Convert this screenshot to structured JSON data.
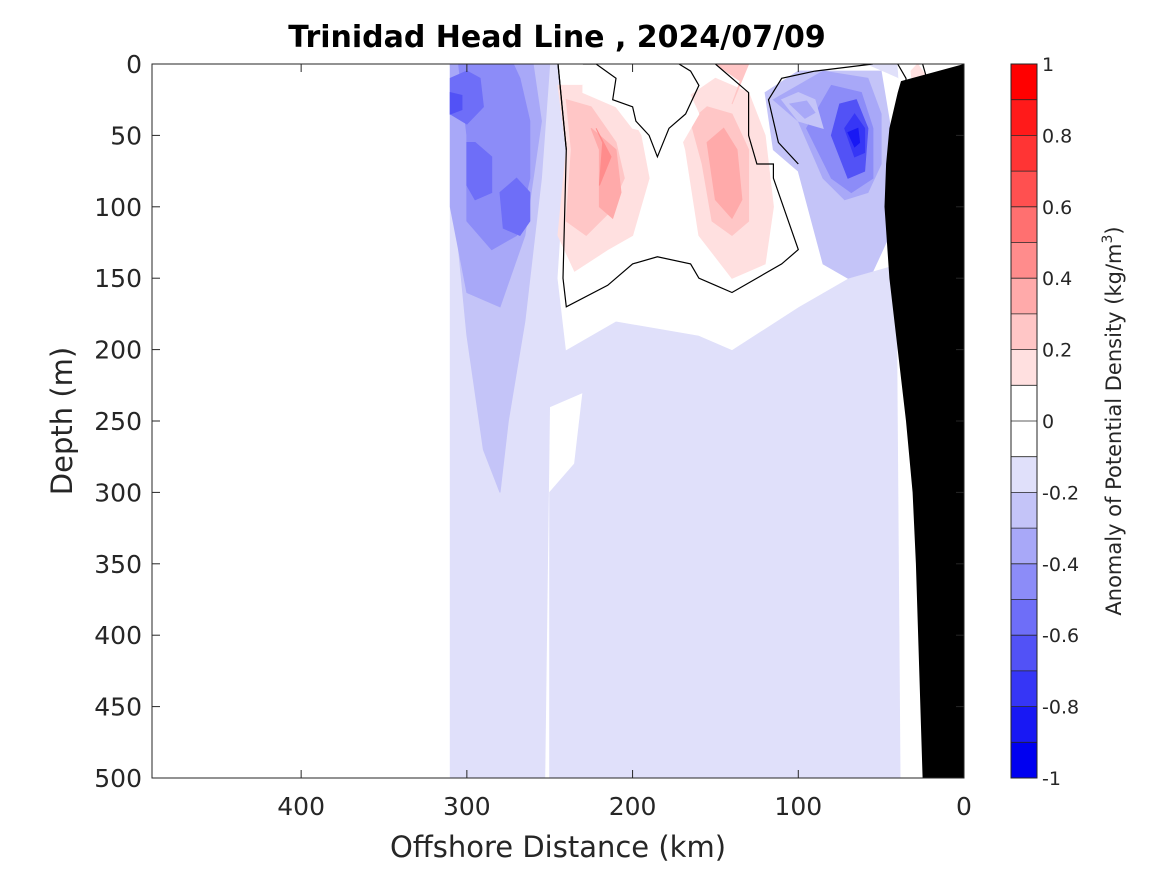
{
  "chart_data": {
    "type": "heatmap",
    "title": "Trinidad Head Line , 2024/07/09",
    "xlabel": "Offshore Distance (km)",
    "ylabel": "Depth (m)",
    "xlim": [
      490,
      0
    ],
    "ylim": [
      500,
      0
    ],
    "x_ticks": [
      400,
      300,
      200,
      100,
      0
    ],
    "y_ticks": [
      0,
      50,
      100,
      150,
      200,
      250,
      300,
      350,
      400,
      450,
      500
    ],
    "colorbar": {
      "label_main": "Anomaly of Potential Density (kg/m",
      "label_sup": "3",
      "label_end": ")",
      "lim": [
        -1,
        1
      ],
      "ticks": [
        1,
        0.8,
        0.6,
        0.4,
        0.2,
        0,
        -0.2,
        -0.4,
        -0.6,
        -0.8,
        -1
      ],
      "levels": 20
    },
    "colors": {
      "neg": [
        "#e0e0fa",
        "#c4c4f8",
        "#a8a8f8",
        "#8c8cf8",
        "#6e6ef8",
        "#5252f6",
        "#3636f6",
        "#1818f4",
        "#0000f0"
      ],
      "pos": [
        "#ffe0e0",
        "#ffc6c6",
        "#ffaaaa",
        "#ff8c8c",
        "#ff7070",
        "#ff5050",
        "#ff3434",
        "#ff1a1a",
        "#ff0000"
      ]
    },
    "ocean_floor_color": "#000000",
    "zero_contour": true,
    "regions": [
      {
        "level": -1,
        "points": [
          [
            310,
            500
          ],
          [
            310,
            0
          ],
          [
            250,
            0
          ],
          [
            248,
            50
          ],
          [
            250,
            230
          ],
          [
            253,
            500
          ]
        ]
      },
      {
        "level": -1,
        "points": [
          [
            250,
            500
          ],
          [
            250,
            300
          ],
          [
            235,
            280
          ],
          [
            230,
            230
          ],
          [
            250,
            240
          ],
          [
            250,
            0
          ],
          [
            160,
            0
          ],
          [
            100,
            0
          ],
          [
            40,
            0
          ],
          [
            37,
            500
          ]
        ]
      },
      {
        "level": 0,
        "points": [
          [
            245,
            0
          ],
          [
            240,
            60
          ],
          [
            245,
            150
          ],
          [
            240,
            200
          ],
          [
            210,
            180
          ],
          [
            160,
            190
          ],
          [
            140,
            200
          ],
          [
            100,
            170
          ],
          [
            70,
            150
          ],
          [
            40,
            140
          ],
          [
            30,
            60
          ],
          [
            40,
            10
          ],
          [
            60,
            0
          ]
        ]
      },
      {
        "level": 0,
        "points": [
          [
            30,
            500
          ],
          [
            28,
            200
          ],
          [
            22,
            100
          ],
          [
            20,
            50
          ],
          [
            18,
            0
          ],
          [
            40,
            0
          ],
          [
            35,
            60
          ],
          [
            38,
            120
          ],
          [
            40,
            200
          ],
          [
            38,
            500
          ]
        ]
      },
      {
        "level": -2,
        "points": [
          [
            310,
            0
          ],
          [
            305,
            130
          ],
          [
            300,
            190
          ],
          [
            290,
            270
          ],
          [
            280,
            300
          ],
          [
            275,
            250
          ],
          [
            265,
            180
          ],
          [
            255,
            80
          ],
          [
            250,
            0
          ]
        ]
      },
      {
        "level": -3,
        "points": [
          [
            310,
            0
          ],
          [
            310,
            100
          ],
          [
            300,
            160
          ],
          [
            280,
            170
          ],
          [
            265,
            120
          ],
          [
            255,
            40
          ],
          [
            260,
            0
          ]
        ]
      },
      {
        "level": -4,
        "points": [
          [
            305,
            0
          ],
          [
            300,
            50
          ],
          [
            300,
            110
          ],
          [
            285,
            130
          ],
          [
            270,
            120
          ],
          [
            262,
            80
          ],
          [
            262,
            40
          ],
          [
            268,
            10
          ],
          [
            272,
            0
          ]
        ]
      },
      {
        "level": -5,
        "points": [
          [
            300,
            55
          ],
          [
            300,
            85
          ],
          [
            295,
            95
          ],
          [
            285,
            90
          ],
          [
            285,
            65
          ],
          [
            295,
            55
          ]
        ]
      },
      {
        "level": -5,
        "points": [
          [
            280,
            90
          ],
          [
            278,
            115
          ],
          [
            268,
            120
          ],
          [
            262,
            110
          ],
          [
            262,
            90
          ],
          [
            270,
            80
          ]
        ]
      },
      {
        "level": -5,
        "points": [
          [
            310,
            10
          ],
          [
            310,
            35
          ],
          [
            300,
            42
          ],
          [
            290,
            30
          ],
          [
            292,
            10
          ],
          [
            300,
            5
          ]
        ]
      },
      {
        "level": -6,
        "points": [
          [
            310,
            20
          ],
          [
            310,
            35
          ],
          [
            303,
            32
          ],
          [
            303,
            22
          ]
        ]
      },
      {
        "level": -2,
        "points": [
          [
            120,
            20
          ],
          [
            115,
            60
          ],
          [
            100,
            75
          ],
          [
            85,
            140
          ],
          [
            70,
            150
          ],
          [
            55,
            145
          ],
          [
            45,
            120
          ],
          [
            40,
            90
          ],
          [
            45,
            40
          ],
          [
            50,
            5
          ],
          [
            100,
            5
          ]
        ]
      },
      {
        "level": -3,
        "points": [
          [
            115,
            25
          ],
          [
            100,
            40
          ],
          [
            85,
            80
          ],
          [
            72,
            95
          ],
          [
            58,
            90
          ],
          [
            50,
            70
          ],
          [
            50,
            35
          ],
          [
            58,
            10
          ],
          [
            85,
            5
          ]
        ]
      },
      {
        "level": -4,
        "points": [
          [
            95,
            45
          ],
          [
            80,
            80
          ],
          [
            68,
            90
          ],
          [
            55,
            80
          ],
          [
            55,
            45
          ],
          [
            62,
            20
          ],
          [
            80,
            15
          ]
        ]
      },
      {
        "level": -6,
        "points": [
          [
            80,
            50
          ],
          [
            70,
            80
          ],
          [
            60,
            75
          ],
          [
            58,
            45
          ],
          [
            65,
            25
          ],
          [
            75,
            28
          ]
        ]
      },
      {
        "level": -7,
        "points": [
          [
            72,
            45
          ],
          [
            66,
            65
          ],
          [
            60,
            62
          ],
          [
            60,
            45
          ],
          [
            66,
            35
          ]
        ]
      },
      {
        "level": -8,
        "points": [
          [
            70,
            48
          ],
          [
            66,
            58
          ],
          [
            63,
            55
          ],
          [
            64,
            45
          ]
        ]
      },
      {
        "level": -2,
        "points": [
          [
            110,
            25
          ],
          [
            100,
            40
          ],
          [
            85,
            45
          ],
          [
            90,
            25
          ],
          [
            100,
            20
          ]
        ]
      },
      {
        "level": -3,
        "points": [
          [
            105,
            28
          ],
          [
            96,
            38
          ],
          [
            90,
            34
          ],
          [
            95,
            26
          ]
        ]
      },
      {
        "level": 1,
        "points": [
          [
            245,
            15
          ],
          [
            240,
            60
          ],
          [
            245,
            120
          ],
          [
            235,
            145
          ],
          [
            215,
            130
          ],
          [
            200,
            120
          ],
          [
            190,
            80
          ],
          [
            195,
            50
          ],
          [
            205,
            30
          ],
          [
            225,
            15
          ]
        ]
      },
      {
        "level": 2,
        "points": [
          [
            240,
            25
          ],
          [
            237,
            60
          ],
          [
            240,
            110
          ],
          [
            228,
            120
          ],
          [
            215,
            105
          ],
          [
            205,
            80
          ],
          [
            210,
            55
          ],
          [
            225,
            30
          ]
        ]
      },
      {
        "level": 3,
        "points": [
          [
            225,
            45
          ],
          [
            220,
            60
          ],
          [
            220,
            100
          ],
          [
            212,
            108
          ],
          [
            207,
            90
          ],
          [
            210,
            60
          ]
        ]
      },
      {
        "level": 4,
        "points": [
          [
            222,
            45
          ],
          [
            218,
            55
          ],
          [
            220,
            85
          ],
          [
            213,
            65
          ]
        ]
      },
      {
        "level": 1,
        "points": [
          [
            175,
            30
          ],
          [
            168,
            60
          ],
          [
            160,
            120
          ],
          [
            140,
            150
          ],
          [
            120,
            140
          ],
          [
            115,
            100
          ],
          [
            120,
            50
          ],
          [
            130,
            20
          ],
          [
            150,
            10
          ]
        ]
      },
      {
        "level": 2,
        "points": [
          [
            165,
            40
          ],
          [
            158,
            70
          ],
          [
            152,
            110
          ],
          [
            140,
            120
          ],
          [
            130,
            110
          ],
          [
            130,
            60
          ],
          [
            140,
            35
          ],
          [
            155,
            30
          ]
        ]
      },
      {
        "level": 3,
        "points": [
          [
            155,
            55
          ],
          [
            150,
            95
          ],
          [
            140,
            108
          ],
          [
            134,
            95
          ],
          [
            137,
            60
          ],
          [
            145,
            45
          ]
        ]
      },
      {
        "level": 2,
        "points": [
          [
            150,
            0
          ],
          [
            135,
            12
          ],
          [
            140,
            28
          ],
          [
            130,
            0
          ]
        ]
      },
      {
        "level": 1,
        "points": [
          [
            28,
            0
          ],
          [
            22,
            10
          ],
          [
            22,
            30
          ],
          [
            30,
            25
          ],
          [
            32,
            5
          ]
        ]
      },
      {
        "level": -1,
        "points": [
          [
            35,
            60
          ],
          [
            33,
            70
          ],
          [
            31,
            75
          ],
          [
            29,
            68
          ]
        ]
      },
      {
        "level": 0,
        "points": [
          [
            230,
            15
          ],
          [
            210,
            10
          ],
          [
            200,
            25
          ],
          [
            195,
            45
          ],
          [
            185,
            60
          ],
          [
            180,
            25
          ],
          [
            170,
            10
          ],
          [
            160,
            35
          ],
          [
            170,
            55
          ],
          [
            180,
            50
          ],
          [
            200,
            45
          ],
          [
            210,
            30
          ],
          [
            230,
            20
          ]
        ]
      }
    ],
    "zero_contours": [
      [
        [
          245,
          0
        ],
        [
          240,
          60
        ],
        [
          242,
          150
        ],
        [
          240,
          170
        ],
        [
          215,
          155
        ],
        [
          200,
          140
        ],
        [
          185,
          135
        ],
        [
          165,
          140
        ],
        [
          160,
          150
        ],
        [
          150,
          155
        ],
        [
          140,
          160
        ],
        [
          110,
          140
        ],
        [
          100,
          130
        ],
        [
          115,
          80
        ],
        [
          115,
          70
        ],
        [
          125,
          70
        ],
        [
          130,
          50
        ],
        [
          130,
          20
        ],
        [
          140,
          10
        ],
        [
          150,
          0
        ]
      ],
      [
        [
          245,
          0
        ],
        [
          240,
          60
        ]
      ],
      [
        [
          230,
          0
        ],
        [
          222,
          0
        ],
        [
          210,
          10
        ],
        [
          212,
          25
        ],
        [
          200,
          30
        ],
        [
          198,
          40
        ],
        [
          190,
          50
        ],
        [
          185,
          65
        ],
        [
          178,
          45
        ],
        [
          168,
          35
        ],
        [
          160,
          15
        ],
        [
          165,
          5
        ],
        [
          172,
          0
        ]
      ],
      [
        [
          55,
          0
        ],
        [
          90,
          5
        ],
        [
          110,
          10
        ],
        [
          118,
          25
        ],
        [
          112,
          55
        ],
        [
          100,
          70
        ]
      ],
      [
        [
          25,
          0
        ],
        [
          20,
          20
        ],
        [
          20,
          40
        ],
        [
          15,
          45
        ],
        [
          22,
          50
        ],
        [
          28,
          48
        ],
        [
          35,
          35
        ],
        [
          35,
          10
        ],
        [
          40,
          0
        ]
      ],
      [
        [
          32,
          60
        ],
        [
          29,
          68
        ],
        [
          32,
          75
        ],
        [
          35,
          65
        ],
        [
          32,
          60
        ]
      ]
    ],
    "ocean_floor": [
      [
        0,
        0
      ],
      [
        0,
        500
      ],
      [
        25,
        500
      ],
      [
        29,
        350
      ],
      [
        31,
        300
      ],
      [
        35,
        250
      ],
      [
        40,
        200
      ],
      [
        45,
        150
      ],
      [
        48,
        100
      ],
      [
        47,
        70
      ],
      [
        45,
        45
      ],
      [
        42,
        30
      ],
      [
        40,
        20
      ],
      [
        38,
        12
      ]
    ]
  }
}
